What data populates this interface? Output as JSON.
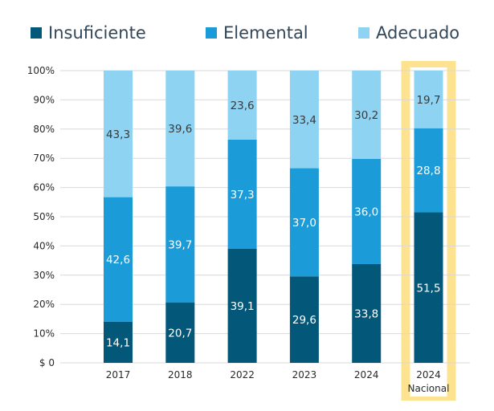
{
  "chart_data": {
    "type": "bar",
    "stacked": true,
    "categories": [
      "2017",
      "2018",
      "2022",
      "2023",
      "2024",
      "2024\nNacional"
    ],
    "highlight_category": "2024\nNacional",
    "series": [
      {
        "name": "Insuficiente",
        "color": "#03587a",
        "label_color": "#ffffff",
        "values": [
          14.1,
          20.7,
          39.1,
          29.6,
          33.8,
          51.5
        ],
        "labels": [
          "14,1",
          "20,7",
          "39,1",
          "29,6",
          "33,8",
          "51,5"
        ]
      },
      {
        "name": "Elemental",
        "color": "#1b9bd7",
        "label_color": "#ffffff",
        "values": [
          42.6,
          39.7,
          37.3,
          37.0,
          36.0,
          28.8
        ],
        "labels": [
          "42,6",
          "39,7",
          "37,3",
          "37,0",
          "36,0",
          "28,8"
        ]
      },
      {
        "name": "Adecuado",
        "color": "#8fd3f3",
        "label_color": "#3a3a3a",
        "values": [
          43.3,
          39.6,
          23.6,
          33.4,
          30.2,
          19.7
        ],
        "labels": [
          "43,3",
          "39,6",
          "23,6",
          "33,4",
          "30,2",
          "19,7"
        ]
      }
    ],
    "ylim": [
      0,
      100
    ],
    "yticks": [
      0,
      10,
      20,
      30,
      40,
      50,
      60,
      70,
      80,
      90,
      100
    ],
    "ytick_labels": [
      "$ 0",
      "10%",
      "20%",
      "30%",
      "40%",
      "50%",
      "60%",
      "70%",
      "80%",
      "90%",
      "100%"
    ],
    "grid": true,
    "legend_position": "top",
    "highlight_color": "#fde28f",
    "gridline_color": "#d9d9d9"
  }
}
